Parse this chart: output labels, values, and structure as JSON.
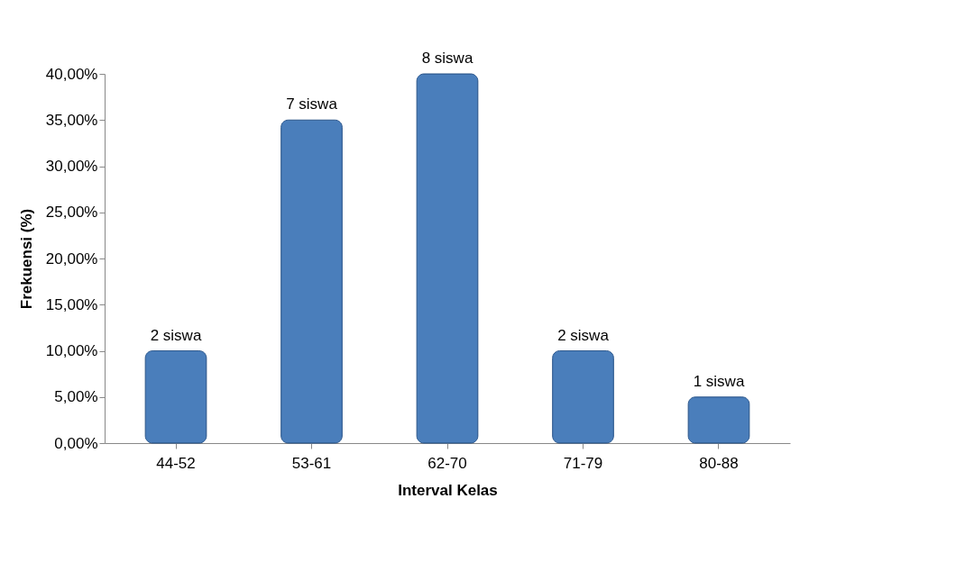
{
  "chart_data": {
    "type": "bar",
    "xlabel": "Interval Kelas",
    "ylabel": "Frekuensi (%)",
    "categories": [
      "44-52",
      "53-61",
      "62-70",
      "71-79",
      "80-88"
    ],
    "values": [
      10,
      35,
      40,
      10,
      5
    ],
    "color": "#4a7ebb",
    "annotations": [
      {
        "text": "2 siswa",
        "x": "44-52",
        "y": 10
      },
      {
        "text": "7 siswa",
        "x": "53-61",
        "y": 35
      },
      {
        "text": "8 siswa",
        "x": "62-70",
        "y": 40
      },
      {
        "text": "2 siswa",
        "x": "71-79",
        "y": 10
      },
      {
        "text": "1 siswa",
        "x": "80-88",
        "y": 5
      }
    ],
    "ylim": [
      0,
      40
    ],
    "yticks": [
      {
        "value": 0,
        "label": "0,00%"
      },
      {
        "value": 5,
        "label": "5,00%"
      },
      {
        "value": 10,
        "label": "10,00%"
      },
      {
        "value": 15,
        "label": "15,00%"
      },
      {
        "value": 20,
        "label": "20,00%"
      },
      {
        "value": 25,
        "label": "25,00%"
      },
      {
        "value": 30,
        "label": "30,00%"
      },
      {
        "value": 35,
        "label": "35,00%"
      },
      {
        "value": 40,
        "label": "40,00%"
      }
    ]
  }
}
